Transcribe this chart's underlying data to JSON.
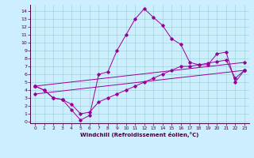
{
  "xlabel": "Windchill (Refroidissement éolien,°C)",
  "bg_color": "#cceeff",
  "line_color": "#990099",
  "x_ticks": [
    0,
    1,
    2,
    3,
    4,
    5,
    6,
    7,
    8,
    9,
    10,
    11,
    12,
    13,
    14,
    15,
    16,
    17,
    18,
    19,
    20,
    21,
    22,
    23
  ],
  "y_ticks": [
    0,
    1,
    2,
    3,
    4,
    5,
    6,
    7,
    8,
    9,
    10,
    11,
    12,
    13,
    14
  ],
  "ylim": [
    -0.2,
    14.8
  ],
  "xlim": [
    -0.5,
    23.5
  ],
  "series": [
    {
      "x": [
        0,
        1,
        2,
        3,
        4,
        5,
        6,
        7,
        8,
        9,
        10,
        11,
        12,
        13,
        14,
        15,
        16,
        17,
        18,
        19,
        20,
        21,
        22,
        23
      ],
      "y": [
        4.5,
        4.0,
        3.0,
        2.8,
        1.5,
        0.2,
        0.8,
        6.0,
        6.3,
        9.0,
        11.0,
        13.0,
        14.3,
        13.2,
        12.2,
        10.5,
        9.8,
        7.5,
        7.2,
        7.2,
        8.6,
        8.8,
        5.0,
        6.5
      ]
    },
    {
      "x": [
        0,
        1,
        2,
        3,
        4,
        5,
        6,
        7,
        8,
        9,
        10,
        11,
        12,
        13,
        14,
        15,
        16,
        17,
        18,
        19,
        20,
        21,
        22,
        23
      ],
      "y": [
        4.5,
        4.0,
        3.0,
        2.8,
        2.2,
        1.0,
        1.2,
        2.5,
        3.0,
        3.5,
        4.0,
        4.5,
        5.0,
        5.5,
        6.0,
        6.5,
        7.0,
        7.0,
        7.2,
        7.4,
        7.6,
        7.8,
        5.5,
        6.5
      ]
    },
    {
      "x": [
        0,
        23
      ],
      "y": [
        4.5,
        7.5
      ]
    },
    {
      "x": [
        0,
        23
      ],
      "y": [
        3.5,
        6.5
      ]
    }
  ]
}
